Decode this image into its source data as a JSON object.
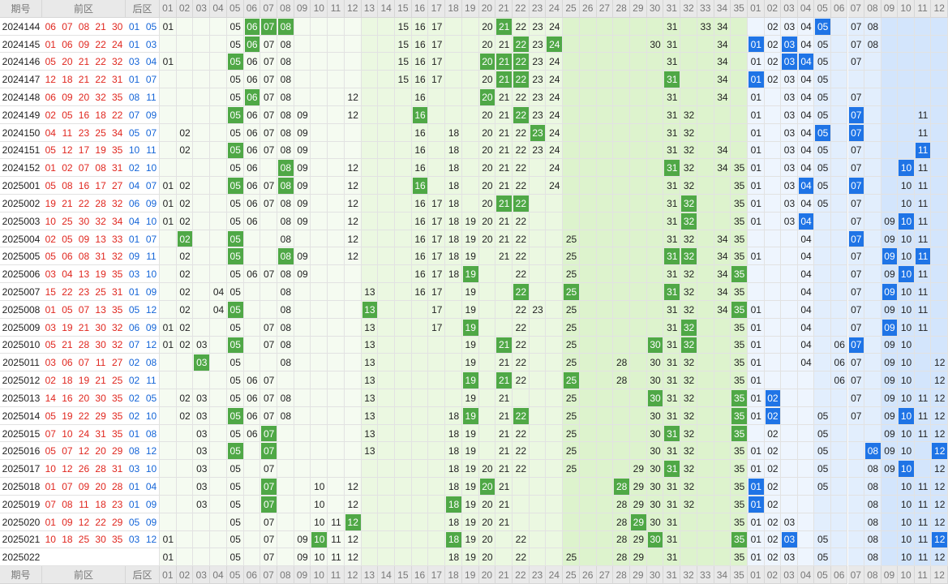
{
  "header": {
    "period": "期号",
    "front": "前区",
    "back": "后区",
    "front_columns": [
      "01",
      "02",
      "03",
      "04",
      "05",
      "06",
      "07",
      "08",
      "09",
      "10",
      "11",
      "12",
      "13",
      "14",
      "15",
      "16",
      "17",
      "18",
      "19",
      "20",
      "21",
      "22",
      "23",
      "24",
      "25",
      "26",
      "27",
      "28",
      "29",
      "30",
      "31",
      "32",
      "33",
      "34",
      "35"
    ],
    "back_columns": [
      "01",
      "02",
      "03",
      "04",
      "05",
      "06",
      "07",
      "08",
      "09",
      "10",
      "11",
      "12"
    ]
  },
  "rows": [
    {
      "issue": "2024144",
      "front": [
        "06",
        "07",
        "08",
        "21",
        "30"
      ],
      "back": [
        "01",
        "05"
      ],
      "front_grid": [
        "01",
        "05",
        "06",
        "07",
        "08",
        "15",
        "16",
        "17",
        "20",
        "21",
        "22",
        "23",
        "24",
        "31",
        "33",
        "34"
      ],
      "back_grid": [
        "02",
        "03",
        "04",
        "05",
        "07",
        "08"
      ]
    },
    {
      "issue": "2024145",
      "front": [
        "01",
        "06",
        "09",
        "22",
        "24"
      ],
      "back": [
        "01",
        "03"
      ],
      "front_grid": [
        "05",
        "06",
        "07",
        "08",
        "15",
        "16",
        "17",
        "20",
        "21",
        "22",
        "23",
        "24",
        "30",
        "31",
        "34"
      ],
      "back_grid": [
        "01",
        "02",
        "03",
        "04",
        "05",
        "07",
        "08"
      ]
    },
    {
      "issue": "2024146",
      "front": [
        "05",
        "20",
        "21",
        "22",
        "32"
      ],
      "back": [
        "03",
        "04"
      ],
      "front_grid": [
        "01",
        "05",
        "06",
        "07",
        "08",
        "15",
        "16",
        "17",
        "20",
        "21",
        "22",
        "23",
        "24",
        "31",
        "34"
      ],
      "back_grid": [
        "01",
        "02",
        "03",
        "04",
        "05",
        "07"
      ]
    },
    {
      "issue": "2024147",
      "front": [
        "12",
        "18",
        "21",
        "22",
        "31"
      ],
      "back": [
        "01",
        "07"
      ],
      "front_grid": [
        "05",
        "06",
        "07",
        "08",
        "15",
        "16",
        "17",
        "20",
        "21",
        "22",
        "23",
        "24",
        "31",
        "34"
      ],
      "back_grid": [
        "01",
        "02",
        "03",
        "04",
        "05"
      ]
    },
    {
      "issue": "2024148",
      "front": [
        "06",
        "09",
        "20",
        "32",
        "35"
      ],
      "back": [
        "08",
        "11"
      ],
      "front_grid": [
        "05",
        "06",
        "07",
        "08",
        "12",
        "16",
        "20",
        "21",
        "22",
        "23",
        "24",
        "31",
        "34"
      ],
      "back_grid": [
        "01",
        "03",
        "04",
        "05",
        "07"
      ]
    },
    {
      "issue": "2024149",
      "front": [
        "02",
        "05",
        "16",
        "18",
        "22"
      ],
      "back": [
        "07",
        "09"
      ],
      "front_grid": [
        "05",
        "06",
        "07",
        "08",
        "09",
        "12",
        "16",
        "20",
        "21",
        "22",
        "23",
        "24",
        "31",
        "32"
      ],
      "back_grid": [
        "01",
        "03",
        "04",
        "05",
        "07",
        "11"
      ]
    },
    {
      "issue": "2024150",
      "front": [
        "04",
        "11",
        "23",
        "25",
        "34"
      ],
      "back": [
        "05",
        "07"
      ],
      "front_grid": [
        "02",
        "05",
        "06",
        "07",
        "08",
        "09",
        "16",
        "18",
        "20",
        "21",
        "22",
        "23",
        "24",
        "31",
        "32"
      ],
      "back_grid": [
        "01",
        "03",
        "04",
        "05",
        "07",
        "11"
      ]
    },
    {
      "issue": "2024151",
      "front": [
        "05",
        "12",
        "17",
        "19",
        "35"
      ],
      "back": [
        "10",
        "11"
      ],
      "front_grid": [
        "02",
        "05",
        "06",
        "07",
        "08",
        "09",
        "16",
        "18",
        "20",
        "21",
        "22",
        "23",
        "24",
        "31",
        "32",
        "34"
      ],
      "back_grid": [
        "01",
        "03",
        "04",
        "05",
        "07",
        "11"
      ]
    },
    {
      "issue": "2024152",
      "front": [
        "01",
        "02",
        "07",
        "08",
        "31"
      ],
      "back": [
        "02",
        "10"
      ],
      "front_grid": [
        "05",
        "06",
        "08",
        "09",
        "12",
        "16",
        "18",
        "20",
        "21",
        "22",
        "24",
        "31",
        "32",
        "34",
        "35"
      ],
      "back_grid": [
        "01",
        "03",
        "04",
        "05",
        "07",
        "10",
        "11"
      ]
    },
    {
      "issue": "2025001",
      "front": [
        "05",
        "08",
        "16",
        "17",
        "27"
      ],
      "back": [
        "04",
        "07"
      ],
      "front_grid": [
        "01",
        "02",
        "05",
        "06",
        "07",
        "08",
        "09",
        "12",
        "16",
        "18",
        "20",
        "21",
        "22",
        "24",
        "31",
        "32",
        "35"
      ],
      "back_grid": [
        "01",
        "03",
        "04",
        "05",
        "07",
        "10",
        "11"
      ]
    },
    {
      "issue": "2025002",
      "front": [
        "19",
        "21",
        "22",
        "28",
        "32"
      ],
      "back": [
        "06",
        "09"
      ],
      "front_grid": [
        "01",
        "02",
        "05",
        "06",
        "07",
        "08",
        "09",
        "12",
        "16",
        "17",
        "18",
        "20",
        "21",
        "22",
        "31",
        "32",
        "35"
      ],
      "back_grid": [
        "01",
        "03",
        "04",
        "05",
        "07",
        "10",
        "11"
      ]
    },
    {
      "issue": "2025003",
      "front": [
        "10",
        "25",
        "30",
        "32",
        "34"
      ],
      "back": [
        "04",
        "10"
      ],
      "front_grid": [
        "01",
        "02",
        "05",
        "06",
        "08",
        "09",
        "12",
        "16",
        "17",
        "18",
        "19",
        "20",
        "21",
        "22",
        "31",
        "32",
        "35"
      ],
      "back_grid": [
        "01",
        "03",
        "04",
        "07",
        "09",
        "10",
        "11"
      ]
    },
    {
      "issue": "2025004",
      "front": [
        "02",
        "05",
        "09",
        "13",
        "33"
      ],
      "back": [
        "01",
        "07"
      ],
      "front_grid": [
        "02",
        "05",
        "08",
        "12",
        "16",
        "17",
        "18",
        "19",
        "20",
        "21",
        "22",
        "25",
        "31",
        "32",
        "34",
        "35"
      ],
      "back_grid": [
        "04",
        "07",
        "09",
        "10",
        "11"
      ]
    },
    {
      "issue": "2025005",
      "front": [
        "05",
        "06",
        "08",
        "31",
        "32"
      ],
      "back": [
        "09",
        "11"
      ],
      "front_grid": [
        "02",
        "05",
        "08",
        "09",
        "12",
        "16",
        "17",
        "18",
        "19",
        "21",
        "22",
        "25",
        "31",
        "32",
        "34",
        "35"
      ],
      "back_grid": [
        "01",
        "04",
        "07",
        "09",
        "10",
        "11"
      ]
    },
    {
      "issue": "2025006",
      "front": [
        "03",
        "04",
        "13",
        "19",
        "35"
      ],
      "back": [
        "03",
        "10"
      ],
      "front_grid": [
        "02",
        "05",
        "06",
        "07",
        "08",
        "09",
        "16",
        "17",
        "18",
        "19",
        "22",
        "25",
        "31",
        "32",
        "34",
        "35"
      ],
      "back_grid": [
        "04",
        "07",
        "09",
        "10",
        "11"
      ]
    },
    {
      "issue": "2025007",
      "front": [
        "15",
        "22",
        "23",
        "25",
        "31"
      ],
      "back": [
        "01",
        "09"
      ],
      "front_grid": [
        "02",
        "04",
        "05",
        "08",
        "13",
        "16",
        "17",
        "19",
        "22",
        "25",
        "31",
        "32",
        "34",
        "35"
      ],
      "back_grid": [
        "04",
        "07",
        "09",
        "10",
        "11"
      ]
    },
    {
      "issue": "2025008",
      "front": [
        "01",
        "05",
        "07",
        "13",
        "35"
      ],
      "back": [
        "05",
        "12"
      ],
      "front_grid": [
        "02",
        "04",
        "05",
        "08",
        "13",
        "17",
        "19",
        "22",
        "23",
        "25",
        "31",
        "32",
        "34",
        "35"
      ],
      "back_grid": [
        "01",
        "04",
        "07",
        "09",
        "10",
        "11"
      ]
    },
    {
      "issue": "2025009",
      "front": [
        "03",
        "19",
        "21",
        "30",
        "32"
      ],
      "back": [
        "06",
        "09"
      ],
      "front_grid": [
        "01",
        "02",
        "05",
        "07",
        "08",
        "13",
        "17",
        "19",
        "22",
        "25",
        "31",
        "32",
        "35"
      ],
      "back_grid": [
        "01",
        "04",
        "07",
        "09",
        "10",
        "11"
      ]
    },
    {
      "issue": "2025010",
      "front": [
        "05",
        "21",
        "28",
        "30",
        "32"
      ],
      "back": [
        "07",
        "12"
      ],
      "front_grid": [
        "01",
        "02",
        "03",
        "05",
        "07",
        "08",
        "13",
        "19",
        "21",
        "22",
        "25",
        "30",
        "31",
        "32",
        "35"
      ],
      "back_grid": [
        "01",
        "04",
        "06",
        "07",
        "09",
        "10"
      ]
    },
    {
      "issue": "2025011",
      "front": [
        "03",
        "06",
        "07",
        "11",
        "27"
      ],
      "back": [
        "02",
        "08"
      ],
      "front_grid": [
        "03",
        "05",
        "08",
        "13",
        "19",
        "21",
        "22",
        "25",
        "28",
        "30",
        "31",
        "32",
        "35"
      ],
      "back_grid": [
        "01",
        "04",
        "06",
        "07",
        "09",
        "10",
        "12"
      ]
    },
    {
      "issue": "2025012",
      "front": [
        "02",
        "18",
        "19",
        "21",
        "25"
      ],
      "back": [
        "02",
        "11"
      ],
      "front_grid": [
        "05",
        "06",
        "07",
        "13",
        "19",
        "21",
        "22",
        "25",
        "28",
        "30",
        "31",
        "32",
        "35"
      ],
      "back_grid": [
        "01",
        "06",
        "07",
        "09",
        "10",
        "12"
      ]
    },
    {
      "issue": "2025013",
      "front": [
        "14",
        "16",
        "20",
        "30",
        "35"
      ],
      "back": [
        "02",
        "05"
      ],
      "front_grid": [
        "02",
        "03",
        "05",
        "06",
        "07",
        "08",
        "13",
        "19",
        "21",
        "25",
        "30",
        "31",
        "32",
        "35"
      ],
      "back_grid": [
        "01",
        "02",
        "07",
        "09",
        "10",
        "11",
        "12"
      ]
    },
    {
      "issue": "2025014",
      "front": [
        "05",
        "19",
        "22",
        "29",
        "35"
      ],
      "back": [
        "02",
        "10"
      ],
      "front_grid": [
        "02",
        "03",
        "05",
        "06",
        "07",
        "08",
        "13",
        "18",
        "19",
        "21",
        "22",
        "25",
        "30",
        "31",
        "32",
        "35"
      ],
      "back_grid": [
        "01",
        "02",
        "05",
        "07",
        "09",
        "10",
        "11",
        "12"
      ]
    },
    {
      "issue": "2025015",
      "front": [
        "07",
        "10",
        "24",
        "31",
        "35"
      ],
      "back": [
        "01",
        "08"
      ],
      "front_grid": [
        "03",
        "05",
        "06",
        "07",
        "13",
        "18",
        "19",
        "21",
        "22",
        "25",
        "30",
        "31",
        "32",
        "35"
      ],
      "back_grid": [
        "02",
        "05",
        "09",
        "10",
        "11",
        "12"
      ]
    },
    {
      "issue": "2025016",
      "front": [
        "05",
        "07",
        "12",
        "20",
        "29"
      ],
      "back": [
        "08",
        "12"
      ],
      "front_grid": [
        "03",
        "05",
        "07",
        "13",
        "18",
        "19",
        "21",
        "22",
        "25",
        "30",
        "31",
        "32",
        "35"
      ],
      "back_grid": [
        "01",
        "02",
        "05",
        "08",
        "09",
        "10",
        "12"
      ]
    },
    {
      "issue": "2025017",
      "front": [
        "10",
        "12",
        "26",
        "28",
        "31"
      ],
      "back": [
        "03",
        "10"
      ],
      "front_grid": [
        "03",
        "05",
        "07",
        "18",
        "19",
        "20",
        "21",
        "22",
        "25",
        "29",
        "30",
        "31",
        "32",
        "35"
      ],
      "back_grid": [
        "01",
        "02",
        "05",
        "08",
        "09",
        "10",
        "12"
      ]
    },
    {
      "issue": "2025018",
      "front": [
        "01",
        "07",
        "09",
        "20",
        "28"
      ],
      "back": [
        "01",
        "04"
      ],
      "front_grid": [
        "03",
        "05",
        "07",
        "10",
        "12",
        "18",
        "19",
        "20",
        "21",
        "28",
        "29",
        "30",
        "31",
        "32",
        "35"
      ],
      "back_grid": [
        "01",
        "02",
        "05",
        "08",
        "10",
        "11",
        "12"
      ]
    },
    {
      "issue": "2025019",
      "front": [
        "07",
        "08",
        "11",
        "18",
        "23"
      ],
      "back": [
        "01",
        "09"
      ],
      "front_grid": [
        "03",
        "05",
        "07",
        "10",
        "12",
        "18",
        "19",
        "20",
        "21",
        "28",
        "29",
        "30",
        "31",
        "32",
        "35"
      ],
      "back_grid": [
        "01",
        "02",
        "08",
        "10",
        "11",
        "12"
      ]
    },
    {
      "issue": "2025020",
      "front": [
        "01",
        "09",
        "12",
        "22",
        "29"
      ],
      "back": [
        "05",
        "09"
      ],
      "front_grid": [
        "05",
        "07",
        "10",
        "11",
        "12",
        "18",
        "19",
        "20",
        "21",
        "28",
        "29",
        "30",
        "31",
        "35"
      ],
      "back_grid": [
        "01",
        "02",
        "03",
        "08",
        "10",
        "11",
        "12"
      ]
    },
    {
      "issue": "2025021",
      "front": [
        "10",
        "18",
        "25",
        "30",
        "35"
      ],
      "back": [
        "03",
        "12"
      ],
      "front_grid": [
        "01",
        "05",
        "07",
        "09",
        "10",
        "11",
        "12",
        "18",
        "19",
        "20",
        "22",
        "28",
        "29",
        "30",
        "31",
        "35"
      ],
      "back_grid": [
        "01",
        "02",
        "03",
        "05",
        "08",
        "10",
        "11",
        "12"
      ]
    },
    {
      "issue": "2025022",
      "front": [],
      "back": [],
      "front_grid": [
        "01",
        "05",
        "07",
        "09",
        "10",
        "11",
        "12",
        "18",
        "19",
        "20",
        "22",
        "25",
        "28",
        "29",
        "31",
        "35"
      ],
      "back_grid": [
        "01",
        "02",
        "03",
        "05",
        "08",
        "10",
        "11",
        "12"
      ]
    }
  ]
}
